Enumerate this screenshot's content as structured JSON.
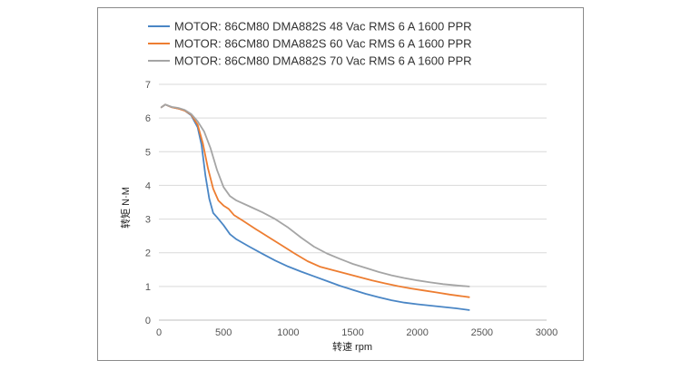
{
  "chart_data": {
    "type": "line",
    "title": "",
    "xlabel": "转速 rpm",
    "ylabel": "转矩 N·M",
    "xlim": [
      0,
      3000
    ],
    "ylim": [
      0,
      7
    ],
    "x_ticks": [
      0,
      500,
      1000,
      1500,
      2000,
      2500,
      3000
    ],
    "y_ticks": [
      0,
      1,
      2,
      3,
      4,
      5,
      6,
      7
    ],
    "grid": "horizontal",
    "legend_position": "top",
    "series": [
      {
        "name": "MOTOR: 86CM80  DMA882S 48 Vac  RMS 6 A  1600 PPR",
        "color": "#4a86c5",
        "points": [
          [
            20,
            6.32
          ],
          [
            50,
            6.4
          ],
          [
            100,
            6.32
          ],
          [
            150,
            6.28
          ],
          [
            200,
            6.22
          ],
          [
            250,
            6.08
          ],
          [
            300,
            5.72
          ],
          [
            330,
            5.2
          ],
          [
            360,
            4.3
          ],
          [
            390,
            3.6
          ],
          [
            420,
            3.18
          ],
          [
            450,
            3.05
          ],
          [
            500,
            2.82
          ],
          [
            550,
            2.55
          ],
          [
            600,
            2.4
          ],
          [
            700,
            2.18
          ],
          [
            800,
            1.97
          ],
          [
            900,
            1.77
          ],
          [
            1000,
            1.59
          ],
          [
            1100,
            1.44
          ],
          [
            1200,
            1.3
          ],
          [
            1300,
            1.16
          ],
          [
            1400,
            1.02
          ],
          [
            1500,
            0.9
          ],
          [
            1600,
            0.78
          ],
          [
            1700,
            0.68
          ],
          [
            1800,
            0.59
          ],
          [
            1900,
            0.52
          ],
          [
            2000,
            0.47
          ],
          [
            2100,
            0.43
          ],
          [
            2200,
            0.39
          ],
          [
            2300,
            0.35
          ],
          [
            2400,
            0.3
          ]
        ]
      },
      {
        "name": "MOTOR: 86CM80  DMA882S 60 Vac  RMS 6 A  1600 PPR",
        "color": "#ed7d31",
        "points": [
          [
            20,
            6.32
          ],
          [
            50,
            6.4
          ],
          [
            100,
            6.32
          ],
          [
            150,
            6.28
          ],
          [
            200,
            6.22
          ],
          [
            250,
            6.1
          ],
          [
            300,
            5.8
          ],
          [
            340,
            5.25
          ],
          [
            380,
            4.5
          ],
          [
            420,
            3.9
          ],
          [
            460,
            3.55
          ],
          [
            500,
            3.4
          ],
          [
            540,
            3.3
          ],
          [
            580,
            3.12
          ],
          [
            650,
            2.95
          ],
          [
            750,
            2.7
          ],
          [
            850,
            2.46
          ],
          [
            950,
            2.22
          ],
          [
            1050,
            1.98
          ],
          [
            1150,
            1.75
          ],
          [
            1250,
            1.58
          ],
          [
            1350,
            1.48
          ],
          [
            1450,
            1.38
          ],
          [
            1550,
            1.28
          ],
          [
            1650,
            1.18
          ],
          [
            1750,
            1.09
          ],
          [
            1850,
            1.01
          ],
          [
            1950,
            0.94
          ],
          [
            2050,
            0.88
          ],
          [
            2150,
            0.82
          ],
          [
            2250,
            0.76
          ],
          [
            2400,
            0.68
          ]
        ]
      },
      {
        "name": "MOTOR: 86CM80  DMA882S 70 Vac  RMS 6 A  1600 PPR",
        "color": "#a5a5a5",
        "points": [
          [
            20,
            6.32
          ],
          [
            50,
            6.4
          ],
          [
            100,
            6.33
          ],
          [
            150,
            6.3
          ],
          [
            200,
            6.24
          ],
          [
            250,
            6.12
          ],
          [
            300,
            5.9
          ],
          [
            350,
            5.6
          ],
          [
            400,
            5.1
          ],
          [
            450,
            4.45
          ],
          [
            500,
            3.95
          ],
          [
            550,
            3.68
          ],
          [
            600,
            3.55
          ],
          [
            700,
            3.38
          ],
          [
            800,
            3.2
          ],
          [
            900,
            3.0
          ],
          [
            1000,
            2.75
          ],
          [
            1100,
            2.45
          ],
          [
            1200,
            2.18
          ],
          [
            1300,
            1.98
          ],
          [
            1400,
            1.82
          ],
          [
            1500,
            1.67
          ],
          [
            1600,
            1.55
          ],
          [
            1700,
            1.43
          ],
          [
            1800,
            1.33
          ],
          [
            1900,
            1.25
          ],
          [
            2000,
            1.18
          ],
          [
            2100,
            1.12
          ],
          [
            2200,
            1.07
          ],
          [
            2300,
            1.03
          ],
          [
            2400,
            1.0
          ]
        ]
      }
    ]
  }
}
